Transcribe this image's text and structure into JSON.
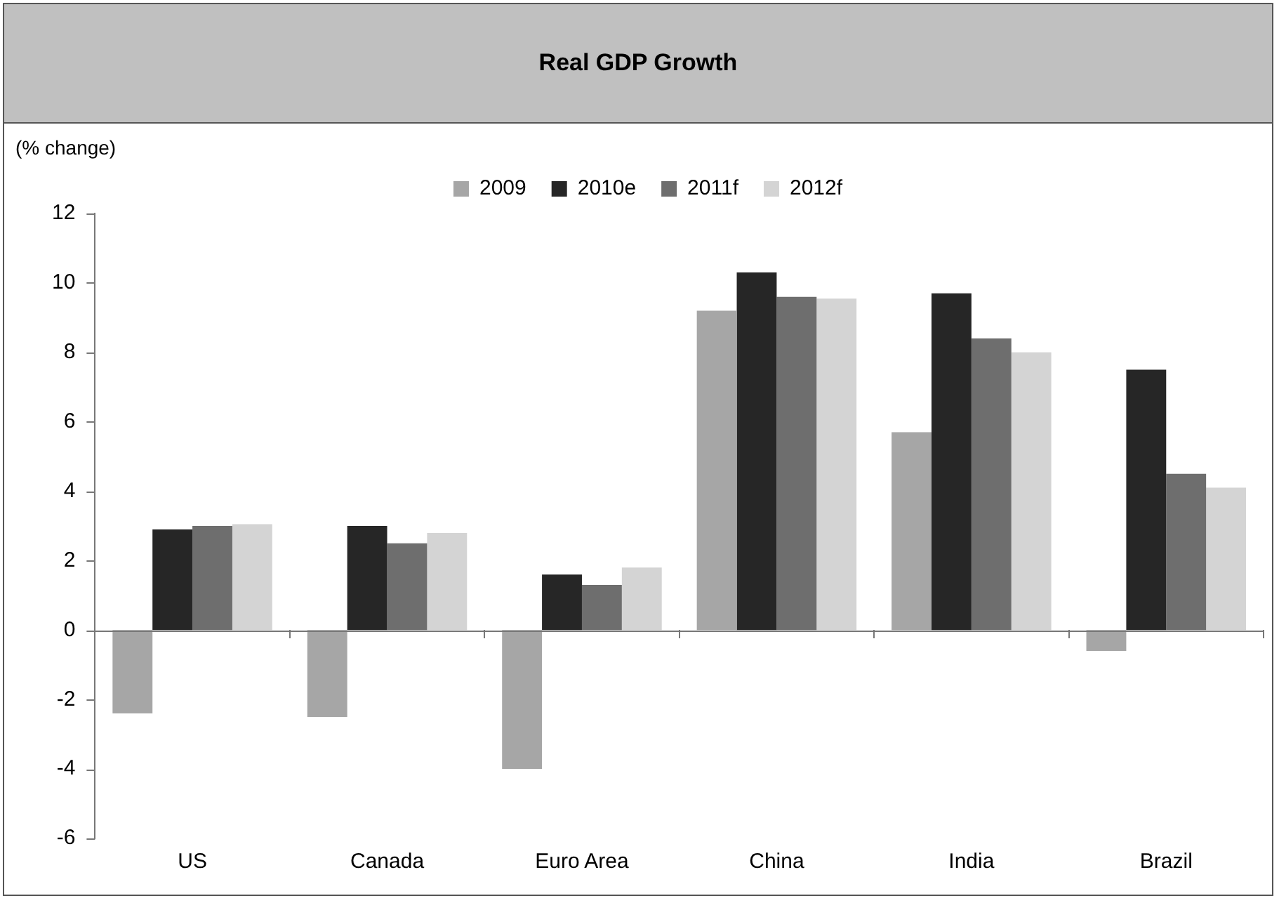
{
  "chart_data": {
    "type": "bar",
    "title": "Real GDP Growth",
    "ylabel": "(% change)",
    "categories": [
      "US",
      "Canada",
      "Euro Area",
      "China",
      "India",
      "Brazil"
    ],
    "series": [
      {
        "name": "2009",
        "color": "#a6a6a6",
        "values": [
          -2.4,
          -2.5,
          -4.0,
          9.2,
          5.7,
          -0.6
        ]
      },
      {
        "name": "2010e",
        "color": "#262626",
        "values": [
          2.9,
          3.0,
          1.6,
          10.3,
          9.7,
          7.5
        ]
      },
      {
        "name": "2011f",
        "color": "#6e6e6e",
        "values": [
          3.0,
          2.5,
          1.3,
          9.6,
          8.4,
          4.5
        ]
      },
      {
        "name": "2012f",
        "color": "#d4d4d4",
        "values": [
          3.05,
          2.8,
          1.8,
          9.55,
          8.0,
          4.1
        ]
      }
    ],
    "ylim": [
      -6,
      12
    ],
    "yticks": [
      -6,
      -4,
      -2,
      0,
      2,
      4,
      6,
      8,
      10,
      12
    ],
    "grid": false,
    "ref_lines": [
      {
        "axis": "y",
        "value": 0,
        "color": "#777777"
      }
    ],
    "legend": "top"
  }
}
